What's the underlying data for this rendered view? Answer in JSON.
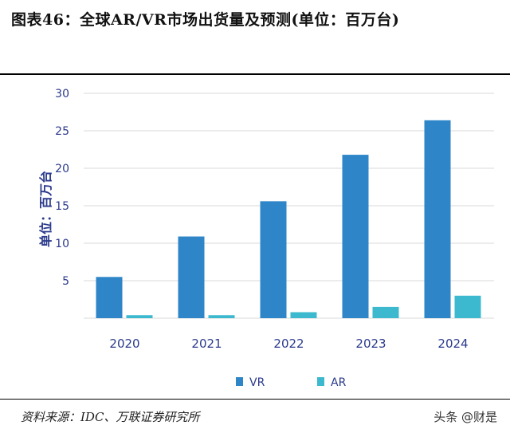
{
  "title": "图表46：全球AR/VR市场出货量及预测(单位：百万台)",
  "source": "资料来源：IDC、万联证券研究所",
  "watermark": "头条 @财是",
  "colors": {
    "vr": "#2E86C8",
    "ar": "#3DB9CF",
    "axis_text": "#2B3A8C",
    "grid": "#d9d9d9"
  },
  "chart_data": {
    "type": "bar",
    "categories": [
      "2020",
      "2021",
      "2022",
      "2023",
      "2024"
    ],
    "series": [
      {
        "name": "VR",
        "values": [
          5.5,
          10.9,
          15.6,
          21.8,
          26.4
        ]
      },
      {
        "name": "AR",
        "values": [
          0.4,
          0.4,
          0.8,
          1.5,
          3.0
        ]
      }
    ],
    "ylabel": "单位：百万台",
    "ylim": [
      0,
      30
    ],
    "yticks": [
      "",
      "5",
      "10",
      "15",
      "20",
      "25",
      "30"
    ],
    "grid": true,
    "legend": "bottom-center"
  }
}
